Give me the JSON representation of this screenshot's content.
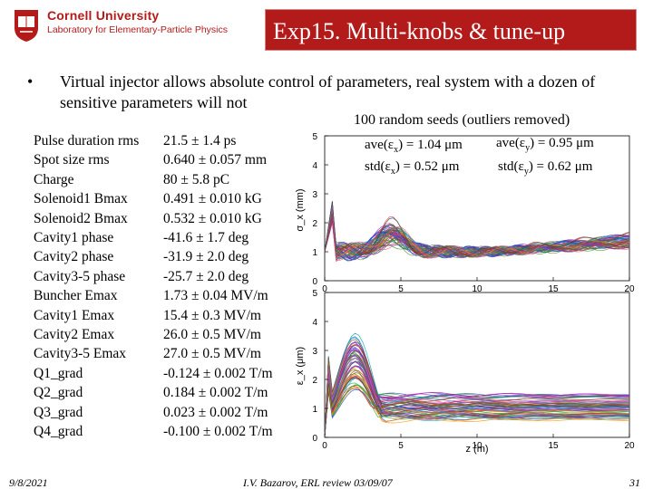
{
  "header": {
    "university": "Cornell University",
    "laboratory": "Laboratory for Elementary-Particle Physics",
    "title": "Exp15. Multi-knobs & tune-up"
  },
  "bullet": {
    "symbol": "•",
    "text": "Virtual injector allows absolute control of parameters, real system with a dozen of sensitive parameters will not"
  },
  "parameters": [
    {
      "name": "Pulse duration rms",
      "value": "21.5 ± 1.4 ps"
    },
    {
      "name": "Spot size rms",
      "value": "0.640 ± 0.057 mm"
    },
    {
      "name": "Charge",
      "value": "80 ± 5.8 pC"
    },
    {
      "name": "Solenoid1 Bmax",
      "value": "0.491 ± 0.010 kG"
    },
    {
      "name": "Solenoid2 Bmax",
      "value": "0.532 ± 0.010 kG"
    },
    {
      "name": "Cavity1 phase",
      "value": "-41.6 ± 1.7 deg"
    },
    {
      "name": "Cavity2 phase",
      "value": "-31.9 ± 2.0 deg"
    },
    {
      "name": "Cavity3-5 phase",
      "value": "-25.7 ± 2.0 deg"
    },
    {
      "name": "Buncher Emax",
      "value": "1.73 ± 0.04 MV/m"
    },
    {
      "name": "Cavity1 Emax",
      "value": "15.4 ± 0.3 MV/m"
    },
    {
      "name": "Cavity2 Emax",
      "value": "26.0 ± 0.5 MV/m"
    },
    {
      "name": "Cavity3-5 Emax",
      "value": "27.0 ± 0.5 MV/m"
    },
    {
      "name": "Q1_grad",
      "value": "-0.124 ± 0.002 T/m"
    },
    {
      "name": "Q2_grad",
      "value": "0.184 ± 0.002 T/m"
    },
    {
      "name": "Q3_grad",
      "value": "0.023 ± 0.002 T/m"
    },
    {
      "name": "Q4_grad",
      "value": "-0.100 ± 0.002 T/m"
    }
  ],
  "annotation": {
    "title": "100 random seeds (outliers removed)",
    "ave_x_label": "ave(ε",
    "ave_x_sub": "x",
    "ave_x_value": ") = 1.04 μm",
    "ave_y_label": "ave(ε",
    "ave_y_sub": "y",
    "ave_y_value": ") = 0.95 μm",
    "std_x_label": "std(ε",
    "std_x_sub": "x",
    "std_x_value": ") = 0.52 μm",
    "std_y_label": "std(ε",
    "std_y_sub": "y",
    "std_y_value": ") = 0.62 μm"
  },
  "plots": {
    "top": {
      "ylabel": "σ_x (mm)",
      "yticks": [
        "0",
        "1",
        "2",
        "3",
        "4",
        "5"
      ],
      "xticks": [
        "0",
        "5",
        "10",
        "15",
        "20"
      ]
    },
    "bottom": {
      "ylabel": "ε_x (μm)",
      "yticks": [
        "0",
        "1",
        "2",
        "3",
        "4",
        "5"
      ],
      "xticks": [
        "0",
        "5",
        "10",
        "15",
        "20"
      ],
      "xlabel": "z (m)"
    }
  },
  "footer": {
    "date": "9/8/2021",
    "reference": "I.V. Bazarov, ERL review 03/09/07",
    "page": "31"
  }
}
